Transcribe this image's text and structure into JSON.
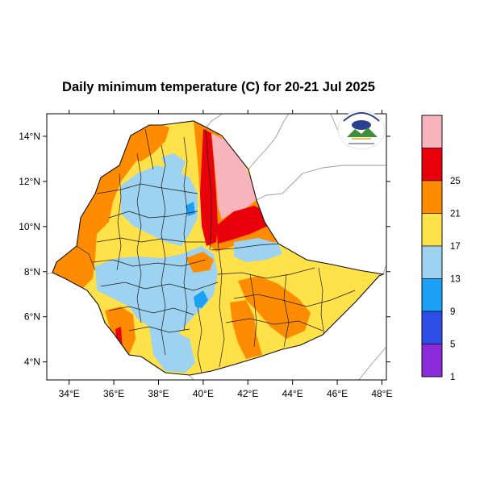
{
  "title": "Daily minimum temperature (C) for 20-21 Jul 2025",
  "map": {
    "lon_range": [
      33,
      48.2
    ],
    "lat_range": [
      3.2,
      15.0
    ],
    "lon_ticks": [
      {
        "value": 34,
        "label": "34°E"
      },
      {
        "value": 36,
        "label": "36°E"
      },
      {
        "value": 38,
        "label": "38°E"
      },
      {
        "value": 40,
        "label": "40°E"
      },
      {
        "value": 42,
        "label": "42°E"
      },
      {
        "value": 44,
        "label": "44°E"
      },
      {
        "value": 46,
        "label": "46°E"
      },
      {
        "value": 48,
        "label": "48°E"
      }
    ],
    "lat_ticks": [
      {
        "value": 14,
        "label": "14°N"
      },
      {
        "value": 12,
        "label": "12°N"
      },
      {
        "value": 10,
        "label": "10°N"
      },
      {
        "value": 8,
        "label": "8°N"
      },
      {
        "value": 6,
        "label": "6°N"
      },
      {
        "value": 4,
        "label": "4°N"
      }
    ],
    "logo_icon": "ethiopian-meteorology-institute-logo"
  },
  "colorbar": {
    "bins": [
      {
        "label": "",
        "color": "#f8b4bc"
      },
      {
        "label": "25",
        "color": "#e8000b"
      },
      {
        "label": "21",
        "color": "#ff8c00"
      },
      {
        "label": "17",
        "color": "#ffe14a"
      },
      {
        "label": "13",
        "color": "#9dd2f0"
      },
      {
        "label": "9",
        "color": "#1aa0f5"
      },
      {
        "label": "5",
        "color": "#2e4ce6"
      },
      {
        "label": "1",
        "color": "#8b2bd9"
      }
    ]
  }
}
